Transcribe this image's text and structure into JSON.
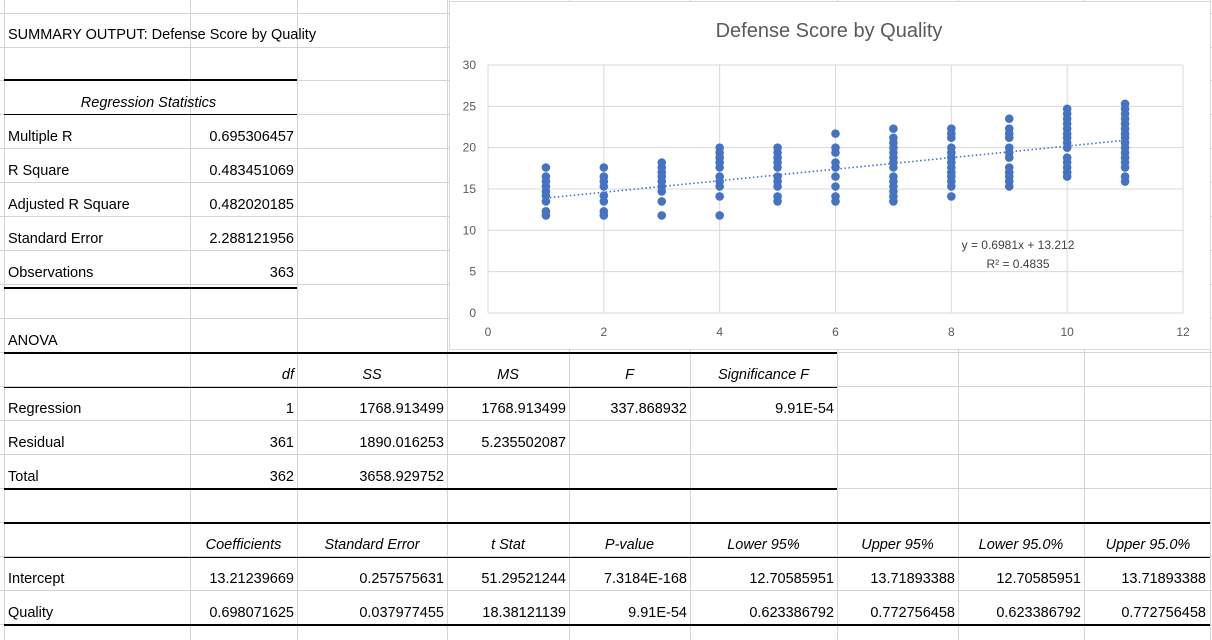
{
  "summary_title": "SUMMARY OUTPUT: Defense Score by Quality",
  "regression_statistics": {
    "header": "Regression Statistics",
    "rows": [
      {
        "label": "Multiple R",
        "value": "0.695306457"
      },
      {
        "label": "R Square",
        "value": "0.483451069"
      },
      {
        "label": "Adjusted R Square",
        "value": "0.482020185"
      },
      {
        "label": "Standard Error",
        "value": "2.288121956"
      },
      {
        "label": "Observations",
        "value": "363"
      }
    ]
  },
  "anova": {
    "title": "ANOVA",
    "headers": [
      "df",
      "SS",
      "MS",
      "F",
      "Significance F"
    ],
    "rows": [
      {
        "label": "Regression",
        "df": "1",
        "ss": "1768.913499",
        "ms": "1768.913499",
        "f": "337.868932",
        "sig": "9.91E-54"
      },
      {
        "label": "Residual",
        "df": "361",
        "ss": "1890.016253",
        "ms": "5.235502087",
        "f": "",
        "sig": ""
      },
      {
        "label": "Total",
        "df": "362",
        "ss": "3658.929752",
        "ms": "",
        "f": "",
        "sig": ""
      }
    ]
  },
  "coefficients": {
    "headers": [
      "Coefficients",
      "Standard Error",
      "t Stat",
      "P-value",
      "Lower 95%",
      "Upper 95%",
      "Lower 95.0%",
      "Upper 95.0%"
    ],
    "rows": [
      {
        "label": "Intercept",
        "values": [
          "13.21239669",
          "0.257575631",
          "51.29521244",
          "7.3184E-168",
          "12.70585951",
          "13.71893388",
          "12.70585951",
          "13.71893388"
        ]
      },
      {
        "label": "Quality",
        "values": [
          "0.698071625",
          "0.037977455",
          "18.38121139",
          "9.91E-54",
          "0.623386792",
          "0.772756458",
          "0.623386792",
          "0.772756458"
        ]
      }
    ]
  },
  "chart_data": {
    "type": "scatter",
    "title": "Defense Score by Quality",
    "xlabel": "",
    "ylabel": "",
    "xlim": [
      0,
      12
    ],
    "ylim": [
      0,
      30
    ],
    "x_ticks": [
      0,
      2,
      4,
      6,
      8,
      10,
      12
    ],
    "y_ticks": [
      0,
      5,
      10,
      15,
      20,
      25,
      30
    ],
    "grid": true,
    "point_color": "#4472c4",
    "trendline": {
      "type": "linear",
      "slope": 0.6981,
      "intercept": 13.212,
      "x_range": [
        1,
        11
      ],
      "style": "dotted",
      "equation_label": "y = 0.6981x + 13.212",
      "r2_label": "R² = 0.4835"
    },
    "series": [
      {
        "points": [
          [
            1,
            11.8
          ],
          [
            1,
            12.3
          ],
          [
            1,
            13.5
          ],
          [
            1,
            14.2
          ],
          [
            1,
            14.7
          ],
          [
            1,
            15.3
          ],
          [
            1,
            15.9
          ],
          [
            1,
            16.5
          ],
          [
            1,
            17.6
          ],
          [
            2,
            11.8
          ],
          [
            2,
            12.3
          ],
          [
            2,
            13.5
          ],
          [
            2,
            14.2
          ],
          [
            2,
            15.3
          ],
          [
            2,
            15.9
          ],
          [
            2,
            16.5
          ],
          [
            2,
            17.6
          ],
          [
            3,
            11.8
          ],
          [
            3,
            13.5
          ],
          [
            3,
            14.7
          ],
          [
            3,
            15.3
          ],
          [
            3,
            15.9
          ],
          [
            3,
            16.5
          ],
          [
            3,
            17.0
          ],
          [
            3,
            17.6
          ],
          [
            3,
            18.2
          ],
          [
            4,
            11.8
          ],
          [
            4,
            14.1
          ],
          [
            4,
            15.3
          ],
          [
            4,
            15.9
          ],
          [
            4,
            16.5
          ],
          [
            4,
            17.6
          ],
          [
            4,
            18.2
          ],
          [
            4,
            18.8
          ],
          [
            4,
            19.4
          ],
          [
            4,
            20.0
          ],
          [
            5,
            13.5
          ],
          [
            5,
            14.1
          ],
          [
            5,
            15.3
          ],
          [
            5,
            15.9
          ],
          [
            5,
            16.5
          ],
          [
            5,
            17.6
          ],
          [
            5,
            18.2
          ],
          [
            5,
            18.8
          ],
          [
            5,
            19.4
          ],
          [
            5,
            20.0
          ],
          [
            6,
            13.5
          ],
          [
            6,
            14.1
          ],
          [
            6,
            15.3
          ],
          [
            6,
            16.5
          ],
          [
            6,
            17.6
          ],
          [
            6,
            18.2
          ],
          [
            6,
            19.4
          ],
          [
            6,
            20.0
          ],
          [
            6,
            21.7
          ],
          [
            7,
            13.5
          ],
          [
            7,
            14.1
          ],
          [
            7,
            14.7
          ],
          [
            7,
            15.3
          ],
          [
            7,
            15.9
          ],
          [
            7,
            16.5
          ],
          [
            7,
            17.6
          ],
          [
            7,
            18.2
          ],
          [
            7,
            18.8
          ],
          [
            7,
            19.4
          ],
          [
            7,
            20.0
          ],
          [
            7,
            20.6
          ],
          [
            7,
            21.2
          ],
          [
            7,
            22.3
          ],
          [
            8,
            14.1
          ],
          [
            8,
            15.3
          ],
          [
            8,
            15.9
          ],
          [
            8,
            16.5
          ],
          [
            8,
            17.0
          ],
          [
            8,
            17.6
          ],
          [
            8,
            18.2
          ],
          [
            8,
            18.8
          ],
          [
            8,
            19.4
          ],
          [
            8,
            20.0
          ],
          [
            8,
            21.2
          ],
          [
            8,
            21.7
          ],
          [
            8,
            22.3
          ],
          [
            9,
            15.3
          ],
          [
            9,
            15.9
          ],
          [
            9,
            16.5
          ],
          [
            9,
            17.0
          ],
          [
            9,
            17.6
          ],
          [
            9,
            18.8
          ],
          [
            9,
            19.4
          ],
          [
            9,
            20.0
          ],
          [
            9,
            21.2
          ],
          [
            9,
            21.7
          ],
          [
            9,
            22.3
          ],
          [
            9,
            23.5
          ],
          [
            10,
            16.5
          ],
          [
            10,
            17.0
          ],
          [
            10,
            17.6
          ],
          [
            10,
            18.2
          ],
          [
            10,
            18.8
          ],
          [
            10,
            20.0
          ],
          [
            10,
            20.6
          ],
          [
            10,
            21.2
          ],
          [
            10,
            21.7
          ],
          [
            10,
            22.3
          ],
          [
            10,
            22.9
          ],
          [
            10,
            23.5
          ],
          [
            10,
            24.1
          ],
          [
            10,
            24.7
          ],
          [
            11,
            15.9
          ],
          [
            11,
            16.5
          ],
          [
            11,
            17.6
          ],
          [
            11,
            18.2
          ],
          [
            11,
            18.8
          ],
          [
            11,
            19.4
          ],
          [
            11,
            20.0
          ],
          [
            11,
            20.6
          ],
          [
            11,
            21.2
          ],
          [
            11,
            21.7
          ],
          [
            11,
            22.3
          ],
          [
            11,
            22.9
          ],
          [
            11,
            23.5
          ],
          [
            11,
            24.1
          ],
          [
            11,
            24.7
          ],
          [
            11,
            25.3
          ]
        ]
      }
    ]
  }
}
